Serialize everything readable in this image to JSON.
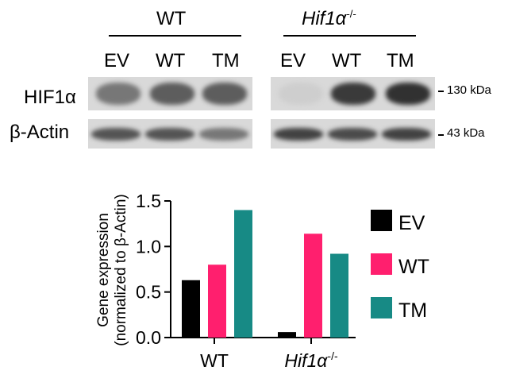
{
  "blot": {
    "groups": [
      {
        "label": "WT",
        "italic": false,
        "superscript": ""
      },
      {
        "label": "Hif1α",
        "italic": true,
        "superscript": "-/-"
      }
    ],
    "lanes": [
      "EV",
      "WT",
      "TM",
      "EV",
      "WT",
      "TM"
    ],
    "rows": [
      {
        "label": "HIF1α",
        "marker": "130 kDa",
        "intensity": [
          0.55,
          0.7,
          0.7,
          0.05,
          0.9,
          0.95
        ]
      },
      {
        "label": "β-Actin",
        "marker": "43 kDa",
        "intensity": [
          0.75,
          0.75,
          0.55,
          0.85,
          0.8,
          0.85
        ]
      }
    ]
  },
  "chart_data": {
    "type": "bar",
    "ylabel_line1": "Gene expression",
    "ylabel_line2": "(normalized to β-Actin)",
    "ylim": [
      0,
      1.5
    ],
    "yticks": [
      "0.0",
      "0.5",
      "1.0",
      "1.5"
    ],
    "yticks_values": [
      0,
      0.5,
      1.0,
      1.5
    ],
    "groups": [
      {
        "label": "WT",
        "italic": false,
        "superscript": ""
      },
      {
        "label": "Hif1α",
        "italic": true,
        "superscript": "-/-"
      }
    ],
    "series": [
      {
        "name": "EV",
        "color": "#000000",
        "values": [
          0.63,
          0.06
        ]
      },
      {
        "name": "WT",
        "color": "#ff1f6e",
        "values": [
          0.8,
          1.14
        ]
      },
      {
        "name": "TM",
        "color": "#178a85",
        "values": [
          1.4,
          0.92
        ]
      }
    ],
    "legend_position": "right"
  }
}
